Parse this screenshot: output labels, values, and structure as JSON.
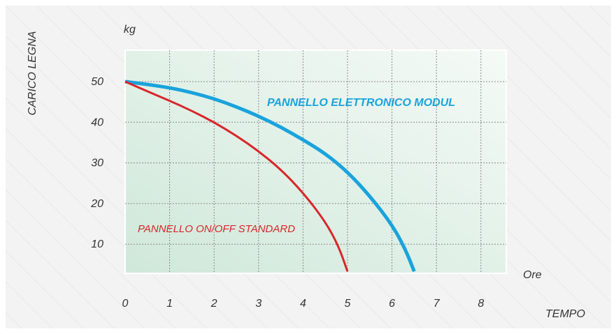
{
  "chart_data": {
    "type": "line",
    "title": "",
    "ylabel": "CARICO LEGNA",
    "yunit": "kg",
    "xunit": "Ore",
    "xlabel": "TEMPO",
    "x_ticks": [
      "0",
      "1",
      "2",
      "3",
      "4",
      "5",
      "6",
      "7",
      "8"
    ],
    "y_ticks": [
      "10",
      "20",
      "30",
      "40",
      "50"
    ],
    "xlim": [
      0,
      8.5
    ],
    "ylim": [
      3.3,
      57.5
    ],
    "grid": true,
    "series": [
      {
        "name": "PANNELLO ELETTRONICO MODUL",
        "color": "#1aa3dc",
        "x": [
          0,
          0.5,
          1,
          1.5,
          2,
          2.5,
          3,
          3.5,
          4,
          4.5,
          5,
          5.5,
          6,
          6.3,
          6.5
        ],
        "y": [
          50,
          49.3,
          48.5,
          47.3,
          45.8,
          43.8,
          41.5,
          38.8,
          35.7,
          32.3,
          27.8,
          21.9,
          14.8,
          8.8,
          3.3
        ]
      },
      {
        "name": "PANNELLO ON/OFF STANDARD",
        "color": "#d8262b",
        "x": [
          0,
          0.5,
          1,
          1.5,
          2,
          2.5,
          3,
          3.5,
          4,
          4.5,
          4.8,
          5
        ],
        "y": [
          50,
          47.6,
          45.3,
          42.8,
          40,
          36.7,
          32.9,
          28.4,
          22.7,
          15.6,
          9.5,
          3.3
        ]
      }
    ]
  }
}
